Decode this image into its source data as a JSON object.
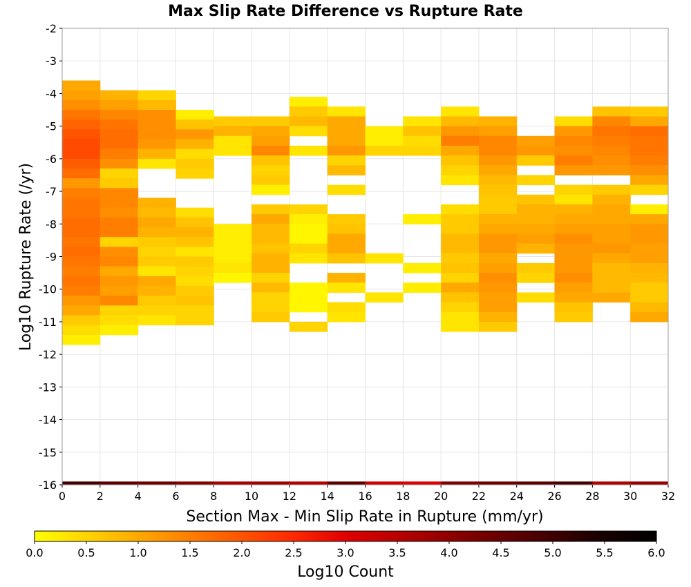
{
  "chart_data": {
    "type": "heatmap",
    "title": "Max Slip Rate Difference vs Rupture Rate",
    "xlabel": "Section Max - Min Slip Rate in Rupture (mm/yr)",
    "ylabel": "Log10 Rupture Rate (/yr)",
    "xlim": [
      0,
      32
    ],
    "ylim": [
      -16,
      -2
    ],
    "x_ticks": [
      "0",
      "2",
      "4",
      "6",
      "8",
      "10",
      "12",
      "14",
      "16",
      "18",
      "20",
      "22",
      "24",
      "26",
      "28",
      "30",
      "32"
    ],
    "y_ticks": [
      "-2",
      "-3",
      "-4",
      "-5",
      "-6",
      "-7",
      "-8",
      "-9",
      "-10",
      "-11",
      "-12",
      "-13",
      "-14",
      "-15",
      "-16"
    ],
    "x_bin_width": 2,
    "y_bin_height": 0.3,
    "grid": true,
    "colorbar": {
      "label": "Log10 Count",
      "min": 0.0,
      "max": 6.0,
      "ticks": [
        "0.0",
        "0.5",
        "1.0",
        "1.5",
        "2.0",
        "2.5",
        "3.0",
        "3.5",
        "4.0",
        "4.5",
        "5.0",
        "5.5",
        "6.0"
      ],
      "colors": [
        "#ffff00",
        "#ffd400",
        "#ffa900",
        "#ff7e00",
        "#ff5300",
        "#ff2800",
        "#e00000",
        "#b80000",
        "#8f0000",
        "#670000",
        "#3e0000",
        "#160000",
        "#000000"
      ]
    },
    "columns": [
      {
        "x": 0,
        "y_top": -3.6,
        "values": [
          1.0,
          1.1,
          1.3,
          1.6,
          1.8,
          2.0,
          2.1,
          2.1,
          1.9,
          1.7,
          1.2,
          1.5,
          1.6,
          1.6,
          1.7,
          1.7,
          1.6,
          1.7,
          1.6,
          1.5,
          1.6,
          1.5,
          1.2,
          1.0,
          0.6,
          0.4,
          0.2
        ]
      },
      {
        "x": 2,
        "y_top": -3.9,
        "values": [
          0.9,
          1.1,
          1.4,
          1.6,
          1.7,
          1.7,
          1.5,
          1.3,
          0.5,
          0.6,
          1.4,
          1.4,
          1.3,
          1.5,
          1.5,
          0.5,
          1.3,
          1.4,
          1.0,
          1.2,
          1.1,
          1.4,
          0.5,
          0.4,
          0.2
        ]
      },
      {
        "x": 4,
        "y_top": -3.9,
        "values": [
          0.5,
          0.8,
          1.3,
          1.3,
          1.3,
          1.2,
          0.9,
          0.3,
          null,
          null,
          null,
          0.9,
          0.8,
          1.0,
          0.9,
          0.6,
          0.5,
          0.6,
          0.3,
          1.0,
          0.9,
          0.6,
          0.5,
          0.3
        ]
      },
      {
        "x": 6,
        "y_top": -4.5,
        "values": [
          0.2,
          0.7,
          1.2,
          0.9,
          0.4,
          0.6,
          0.5,
          null,
          null,
          null,
          0.4,
          0.7,
          0.9,
          0.7,
          0.3,
          0.6,
          0.5,
          0.4,
          0.6,
          0.7,
          0.5,
          0.5
        ]
      },
      {
        "x": 8,
        "y_top": -4.7,
        "values": [
          0.6,
          0.9,
          0.3,
          0.3,
          null,
          null,
          null,
          null,
          null,
          null,
          null,
          0.2,
          0.2,
          0.2,
          0.2,
          0.3,
          0.1
        ]
      },
      {
        "x": 10,
        "y_top": -4.7,
        "values": [
          0.6,
          1.0,
          1.1,
          1.4,
          0.7,
          0.5,
          0.6,
          0.2,
          null,
          0.6,
          1.0,
          0.8,
          0.8,
          0.7,
          0.9,
          0.9,
          0.5,
          0.8,
          0.5,
          0.5,
          0.6
        ]
      },
      {
        "x": 12,
        "y_top": -4.1,
        "values": [
          0.2,
          0.6,
          0.8,
          0.4,
          null,
          0.3,
          null,
          null,
          null,
          null,
          null,
          0.5,
          0.2,
          0.1,
          0.1,
          0.5,
          0.3,
          null,
          null,
          0.1,
          0.1,
          0.1,
          null,
          0.5
        ]
      },
      {
        "x": 14,
        "y_top": -4.4,
        "values": [
          0.3,
          1.0,
          1.0,
          1.0,
          1.2,
          0.5,
          0.8,
          null,
          0.4,
          null,
          null,
          0.6,
          0.7,
          1.0,
          1.0,
          0.7,
          null,
          0.9,
          0.3,
          null,
          0.4,
          0.3
        ]
      },
      {
        "x": 16,
        "y_top": -5.0,
        "values": [
          0.2,
          0.2,
          0.5,
          null,
          null,
          null,
          null,
          null,
          null,
          null,
          null,
          null,
          null,
          0.3,
          null,
          null,
          null,
          0.3
        ]
      },
      {
        "x": 18,
        "y_top": -4.7,
        "values": [
          0.3,
          0.7,
          0.4,
          0.5,
          null,
          null,
          null,
          null,
          null,
          null,
          0.2,
          null,
          null,
          null,
          null,
          0.2,
          null,
          0.2
        ]
      },
      {
        "x": 20,
        "y_top": -4.4,
        "values": [
          0.3,
          0.8,
          1.2,
          1.5,
          1.0,
          0.7,
          0.5,
          0.3,
          null,
          null,
          0.4,
          0.6,
          0.6,
          0.8,
          0.8,
          0.6,
          0.7,
          0.5,
          1.0,
          0.7,
          0.5,
          0.3,
          0.3
        ]
      },
      {
        "x": 22,
        "y_top": -4.7,
        "values": [
          0.9,
          1.1,
          1.4,
          1.4,
          1.2,
          1.0,
          0.8,
          0.7,
          0.6,
          0.6,
          0.9,
          1.0,
          1.2,
          1.2,
          1.0,
          1.1,
          1.3,
          1.2,
          1.1,
          1.1,
          0.9,
          0.6
        ]
      },
      {
        "x": 24,
        "y_top": -5.3,
        "values": [
          1.1,
          1.2,
          0.6,
          null,
          0.5,
          null,
          0.7,
          0.9,
          0.9,
          1.0,
          1.1,
          0.9,
          null,
          0.6,
          0.5,
          null,
          0.4
        ]
      },
      {
        "x": 26,
        "y_top": -4.7,
        "values": [
          0.4,
          1.2,
          1.4,
          1.3,
          1.5,
          1.2,
          null,
          0.5,
          0.3,
          0.9,
          1.0,
          1.1,
          1.3,
          1.2,
          1.2,
          1.2,
          1.3,
          1.1,
          1.0,
          0.7,
          0.6
        ]
      },
      {
        "x": 28,
        "y_top": -4.4,
        "values": [
          0.7,
          1.4,
          1.6,
          1.5,
          1.4,
          1.3,
          1.2,
          null,
          0.6,
          0.9,
          1.0,
          1.0,
          1.1,
          1.1,
          1.2,
          1.0,
          0.8,
          0.8,
          0.8,
          1.0
        ]
      },
      {
        "x": 30,
        "y_top": -4.4,
        "values": [
          0.6,
          1.0,
          1.7,
          1.6,
          1.6,
          1.5,
          1.3,
          1.0,
          0.5,
          null,
          0.2,
          1.0,
          1.2,
          1.2,
          1.1,
          1.1,
          0.9,
          0.8,
          0.6,
          0.6,
          0.8,
          1.0
        ]
      }
    ],
    "bottom_row": {
      "y": -15.9,
      "values": [
        4.9,
        4.6,
        4.4,
        4.1,
        3.7,
        3.8,
        3.5,
        4.6,
        3.2,
        3.0,
        4.2,
        4.4,
        4.6,
        4.9,
        3.6,
        3.9
      ]
    }
  }
}
